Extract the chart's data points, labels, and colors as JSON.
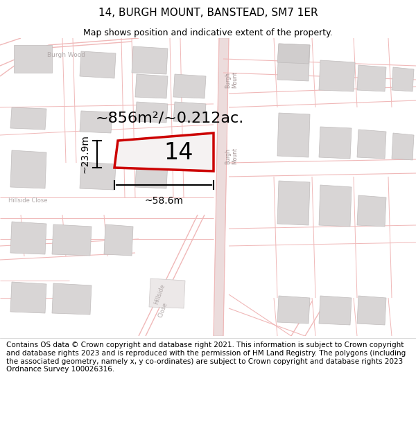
{
  "title": "14, BURGH MOUNT, BANSTEAD, SM7 1ER",
  "subtitle": "Map shows position and indicative extent of the property.",
  "footer": "Contains OS data © Crown copyright and database right 2021. This information is subject to Crown copyright and database rights 2023 and is reproduced with the permission of HM Land Registry. The polygons (including the associated geometry, namely x, y co-ordinates) are subject to Crown copyright and database rights 2023 Ordnance Survey 100026316.",
  "area_label": "~856m²/~0.212ac.",
  "width_label": "~58.6m",
  "height_label": "~23.9m",
  "plot_number": "14",
  "bg_color": "#ffffff",
  "map_bg": "#f7f4f4",
  "road_color": "#f0b8b8",
  "building_fill": "#d8d5d5",
  "building_edge": "#c0bcbc",
  "plot_outline_color": "#cc0000",
  "dim_line_color": "#000000",
  "title_fontsize": 11,
  "subtitle_fontsize": 9,
  "footer_fontsize": 7.5,
  "area_fontsize": 16,
  "dim_fontsize": 10,
  "plot_num_fontsize": 24,
  "label_fontsize": 6.5
}
